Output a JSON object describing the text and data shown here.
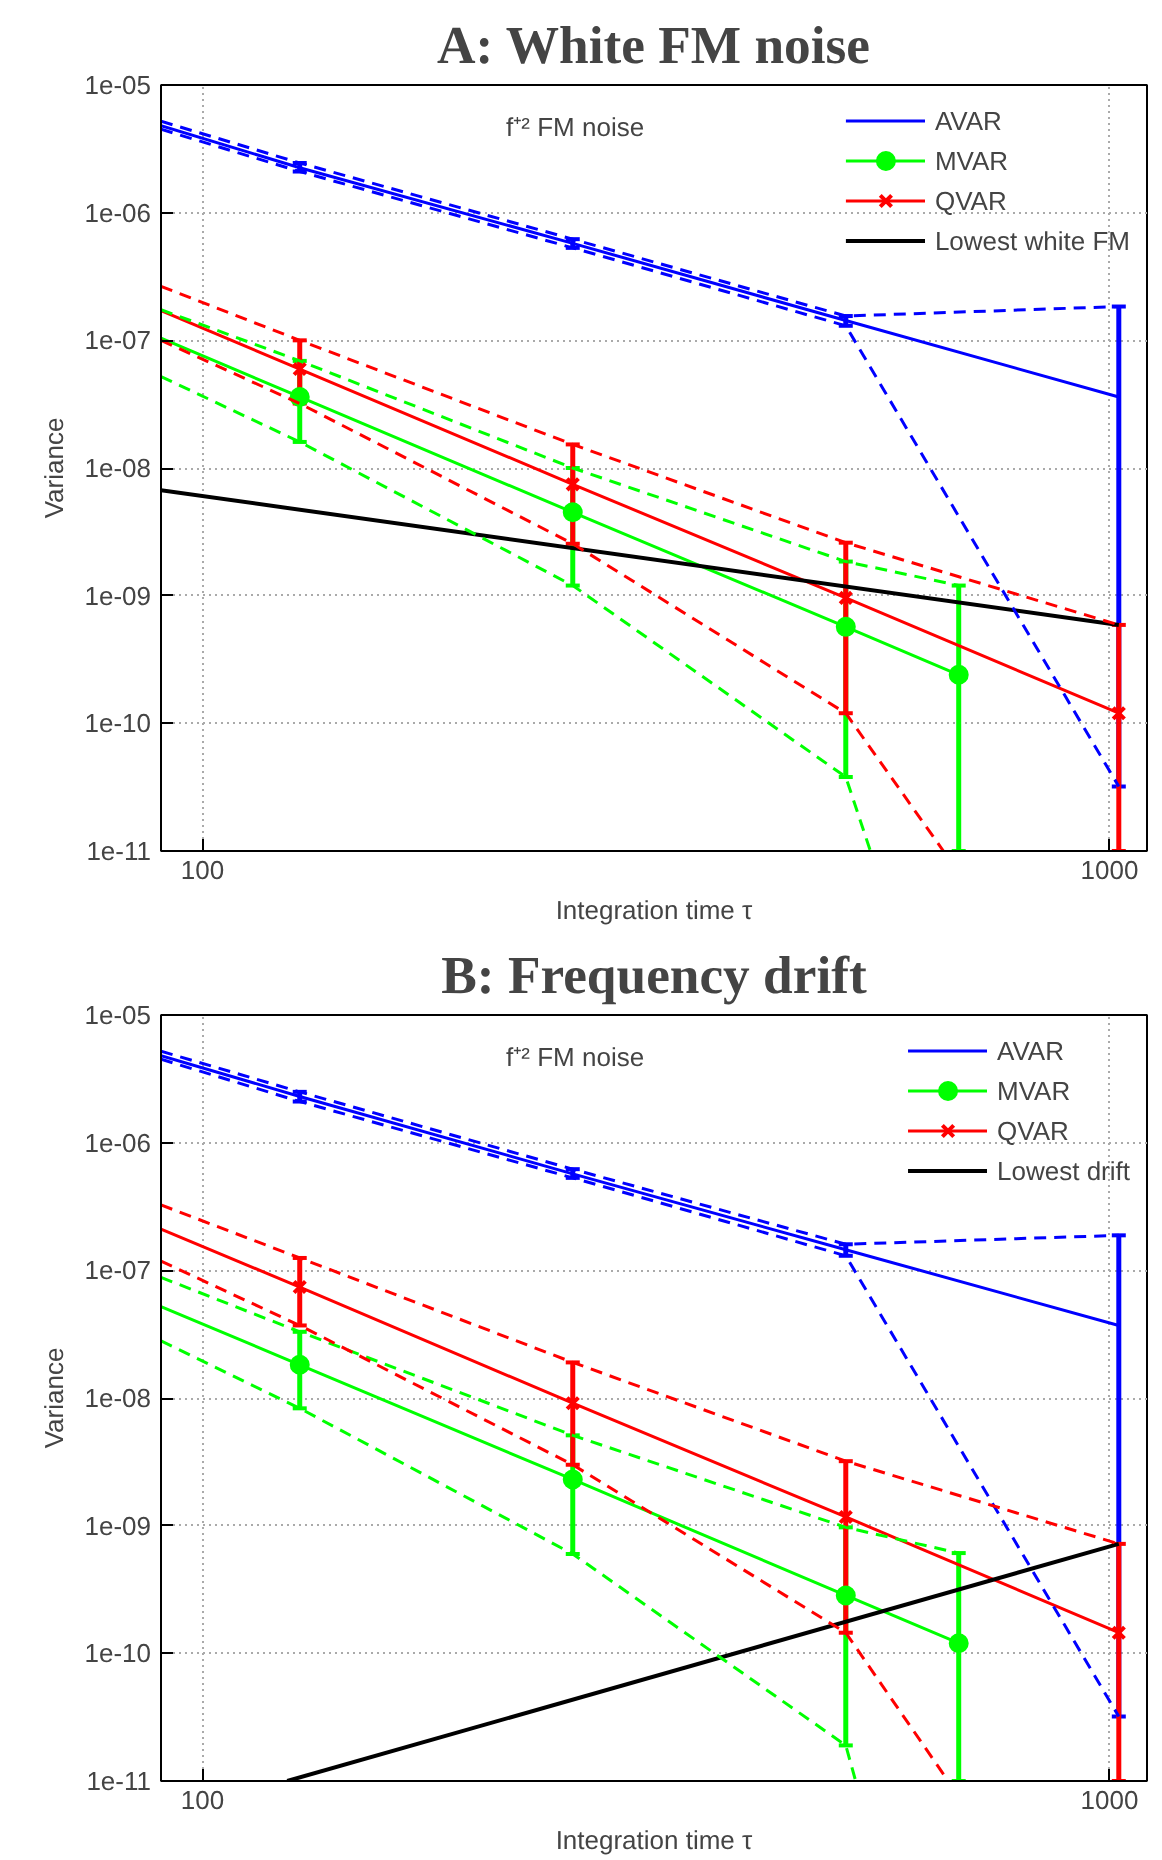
{
  "chart_data": [
    {
      "type": "line",
      "title": "A: White FM noise",
      "xlabel": "Integration time τ",
      "ylabel": "Variance",
      "log": "xy",
      "grid": true,
      "legend": "top right",
      "xlim": [
        90,
        1100
      ],
      "xticks": [
        100,
        1000
      ],
      "ylim": [
        1e-11,
        1e-05
      ],
      "yticks": [
        {
          "value": 1e-11,
          "label": "1e-11"
        },
        {
          "value": 1e-10,
          "label": "1e-10"
        },
        {
          "value": 1e-09,
          "label": "1e-09"
        },
        {
          "value": 1e-08,
          "label": "1e-08"
        },
        {
          "value": 1e-07,
          "label": "1e-07"
        },
        {
          "value": 1e-06,
          "label": "1e-06"
        },
        {
          "value": 1e-05,
          "label": "1e-05"
        }
      ],
      "annotations": [
        "f⁺² FM noise"
      ],
      "series": [
        {
          "name": "AVAR",
          "color": "#0000ff",
          "marker": "none",
          "x": [
            90,
            128,
            256,
            512,
            1024
          ],
          "values": [
            4.8e-06,
            2.25e-06,
            5.75e-07,
            1.43e-07,
            3.6e-08
          ],
          "errors": [
            null,
            [
              2.1e-06,
              2.45e-06
            ],
            [
              5.3e-07,
              6.2e-07
            ],
            [
              1.3e-07,
              1.55e-07
            ],
            [
              3.2e-11,
              1.84e-07
            ]
          ]
        },
        {
          "name": "MVAR",
          "color": "#00ff00",
          "marker": "circle",
          "x": [
            90,
            128,
            256,
            512,
            682
          ],
          "values": [
            1.04e-07,
            3.6e-08,
            4.5e-09,
            5.7e-10,
            2.4e-10
          ],
          "errors": [
            null,
            [
              1.6e-08,
              6.9e-08
            ],
            [
              1.2e-09,
              1e-08
            ],
            [
              3.8e-11,
              1.85e-09
            ],
            [
              1e-11,
              1.2e-09
            ]
          ]
        },
        {
          "name": "QVAR",
          "color": "#ff0000",
          "marker": "cross",
          "x": [
            90,
            128,
            256,
            512,
            1024
          ],
          "values": [
            1.71e-07,
            5.96e-08,
            7.45e-09,
            9.6e-10,
            1.2e-10
          ],
          "errors": [
            null,
            [
              3.2e-08,
              1e-07
            ],
            [
              2.55e-09,
              1.53e-08
            ],
            [
              1.2e-10,
              2.6e-09
            ],
            [
              1e-11,
              5.9e-10
            ]
          ]
        },
        {
          "name": "Lowest white FM",
          "color": "#000000",
          "marker": "none",
          "x": [
            90,
            1024
          ],
          "values": [
            6.7e-09,
            5.9e-10
          ]
        },
        {
          "color": "#0000ff",
          "marker": "none",
          "line_style": "dashed",
          "x": [
            90,
            128,
            256,
            512,
            1024
          ],
          "values": [
            5.2e-06,
            2.45e-06,
            6.2e-07,
            1.55e-07,
            1.84e-07
          ]
        },
        {
          "color": "#0000ff",
          "marker": "none",
          "line_style": "dashed",
          "x": [
            90,
            128,
            256,
            512,
            1024
          ],
          "values": [
            4.5e-06,
            2.1e-06,
            5.3e-07,
            1.3e-07,
            3.2e-11
          ]
        },
        {
          "color": "#00ff00",
          "marker": "none",
          "line_style": "dashed",
          "x": [
            90,
            128,
            256,
            512,
            682
          ],
          "values": [
            1.74e-07,
            6.9e-08,
            1e-08,
            1.85e-09,
            1.2e-09
          ]
        },
        {
          "color": "#00ff00",
          "marker": "none",
          "line_style": "dashed",
          "x": [
            90,
            128,
            256,
            512,
            545
          ],
          "values": [
            5.2e-08,
            1.6e-08,
            1.2e-09,
            3.8e-11,
            1e-11
          ]
        },
        {
          "color": "#ff0000",
          "marker": "none",
          "line_style": "dashed",
          "x": [
            90,
            128,
            256,
            512,
            1024
          ],
          "values": [
            2.65e-07,
            1e-07,
            1.53e-08,
            2.6e-09,
            5.9e-10
          ]
        },
        {
          "color": "#ff0000",
          "marker": "none",
          "line_style": "dashed",
          "x": [
            90,
            128,
            256,
            512,
            656
          ],
          "values": [
            1e-07,
            3.2e-08,
            2.55e-09,
            1.2e-10,
            1e-11
          ]
        }
      ]
    },
    {
      "type": "line",
      "title": "B: Frequency drift",
      "xlabel": "Integration time τ",
      "ylabel": "Variance",
      "log": "xy",
      "grid": true,
      "legend": "top right",
      "xlim": [
        90,
        1100
      ],
      "xticks": [
        100,
        1000
      ],
      "ylim": [
        1e-11,
        1e-05
      ],
      "yticks": [
        {
          "value": 1e-11,
          "label": "1e-11"
        },
        {
          "value": 1e-10,
          "label": "1e-10"
        },
        {
          "value": 1e-09,
          "label": "1e-09"
        },
        {
          "value": 1e-08,
          "label": "1e-08"
        },
        {
          "value": 1e-07,
          "label": "1e-07"
        },
        {
          "value": 1e-06,
          "label": "1e-06"
        },
        {
          "value": 1e-05,
          "label": "1e-05"
        }
      ],
      "annotations": [
        "f⁺² FM noise"
      ],
      "series": [
        {
          "name": "AVAR",
          "color": "#0000ff",
          "marker": "none",
          "x": [
            90,
            128,
            256,
            512,
            1024
          ],
          "values": [
            4.8e-06,
            2.3e-06,
            5.7e-07,
            1.45e-07,
            3.7e-08
          ],
          "errors": [
            null,
            [
              2.1e-06,
              2.5e-06
            ],
            [
              5.3e-07,
              6.2e-07
            ],
            [
              1.3e-07,
              1.6e-07
            ],
            [
              3.2e-11,
              1.88e-07
            ]
          ]
        },
        {
          "name": "MVAR",
          "color": "#00ff00",
          "marker": "circle",
          "x": [
            90,
            128,
            256,
            512,
            682
          ],
          "values": [
            5.2e-08,
            1.82e-08,
            2.3e-09,
            2.84e-10,
            1.2e-10
          ],
          "errors": [
            null,
            [
              8.3e-09,
              3.3e-08
            ],
            [
              6e-10,
              5.1e-09
            ],
            [
              1.9e-11,
              9.7e-10
            ],
            [
              1e-11,
              6.1e-10
            ]
          ]
        },
        {
          "name": "QVAR",
          "color": "#ff0000",
          "marker": "cross",
          "x": [
            90,
            128,
            256,
            512,
            1024
          ],
          "values": [
            2.1e-07,
            7.4e-08,
            9.1e-09,
            1.17e-09,
            1.45e-10
          ],
          "errors": [
            null,
            [
              3.7e-08,
              1.25e-07
            ],
            [
              3e-09,
              1.9e-08
            ],
            [
              1.45e-10,
              3.2e-09
            ],
            [
              1e-11,
              7.2e-10
            ]
          ]
        },
        {
          "name": "Lowest drift",
          "color": "#000000",
          "marker": "none",
          "x": [
            124,
            1024
          ],
          "values": [
            1e-11,
            7.2e-10
          ]
        },
        {
          "color": "#0000ff",
          "marker": "none",
          "line_style": "dashed",
          "x": [
            90,
            128,
            256,
            512,
            1024
          ],
          "values": [
            5.2e-06,
            2.5e-06,
            6.2e-07,
            1.6e-07,
            1.88e-07
          ]
        },
        {
          "color": "#0000ff",
          "marker": "none",
          "line_style": "dashed",
          "x": [
            90,
            128,
            256,
            512,
            1024
          ],
          "values": [
            4.5e-06,
            2.1e-06,
            5.3e-07,
            1.3e-07,
            3.2e-11
          ]
        },
        {
          "color": "#00ff00",
          "marker": "none",
          "line_style": "dashed",
          "x": [
            90,
            128,
            256,
            512,
            682
          ],
          "values": [
            8.8e-08,
            3.3e-08,
            5.1e-09,
            9.7e-10,
            6.1e-10
          ]
        },
        {
          "color": "#00ff00",
          "marker": "none",
          "line_style": "dashed",
          "x": [
            90,
            128,
            256,
            512,
            525
          ],
          "values": [
            2.8e-08,
            8.3e-09,
            6e-10,
            1.9e-11,
            1e-11
          ]
        },
        {
          "color": "#ff0000",
          "marker": "none",
          "line_style": "dashed",
          "x": [
            90,
            128,
            256,
            512,
            1024
          ],
          "values": [
            3.25e-07,
            1.25e-07,
            1.9e-08,
            3.2e-09,
            7.2e-10
          ]
        },
        {
          "color": "#ff0000",
          "marker": "none",
          "line_style": "dashed",
          "x": [
            90,
            128,
            256,
            512,
            664
          ],
          "values": [
            1.18e-07,
            3.7e-08,
            3e-09,
            1.45e-10,
            1e-11
          ]
        }
      ]
    }
  ]
}
